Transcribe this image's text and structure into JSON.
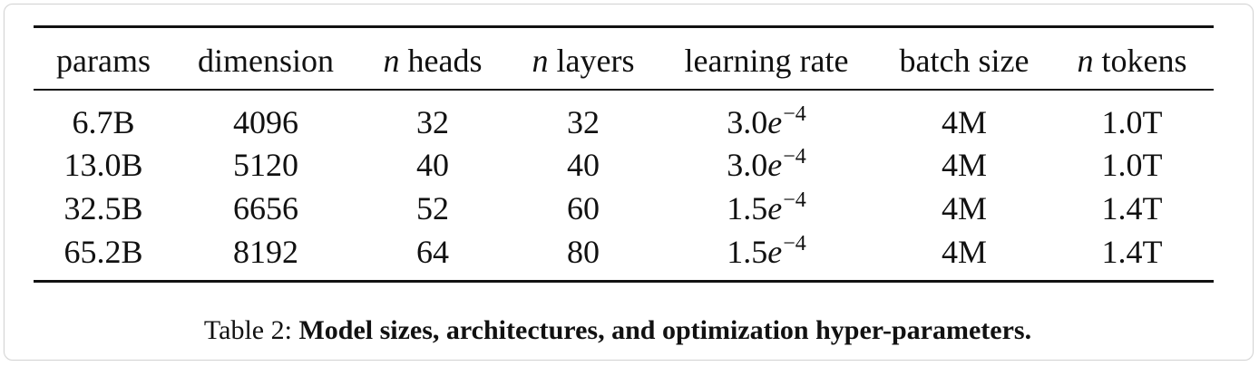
{
  "table": {
    "headers": [
      {
        "var": "",
        "text": "params"
      },
      {
        "var": "",
        "text": "dimension"
      },
      {
        "var": "n",
        "text": " heads"
      },
      {
        "var": "n",
        "text": " layers"
      },
      {
        "var": "",
        "text": "learning rate"
      },
      {
        "var": "",
        "text": "batch size"
      },
      {
        "var": "n",
        "text": " tokens"
      }
    ],
    "rows": [
      {
        "params": "6.7B",
        "dimension": "4096",
        "heads": "32",
        "layers": "32",
        "lr_base": "3.0",
        "lr_e": "e",
        "lr_exp": "−4",
        "batch": "4M",
        "tokens": "1.0T"
      },
      {
        "params": "13.0B",
        "dimension": "5120",
        "heads": "40",
        "layers": "40",
        "lr_base": "3.0",
        "lr_e": "e",
        "lr_exp": "−4",
        "batch": "4M",
        "tokens": "1.0T"
      },
      {
        "params": "32.5B",
        "dimension": "6656",
        "heads": "52",
        "layers": "60",
        "lr_base": "1.5",
        "lr_e": "e",
        "lr_exp": "−4",
        "batch": "4M",
        "tokens": "1.4T"
      },
      {
        "params": "65.2B",
        "dimension": "8192",
        "heads": "64",
        "layers": "80",
        "lr_base": "1.5",
        "lr_e": "e",
        "lr_exp": "−4",
        "batch": "4M",
        "tokens": "1.4T"
      }
    ]
  },
  "caption": {
    "label": "Table 2: ",
    "title": "Model sizes, architectures, and optimization hyper-parameters."
  }
}
